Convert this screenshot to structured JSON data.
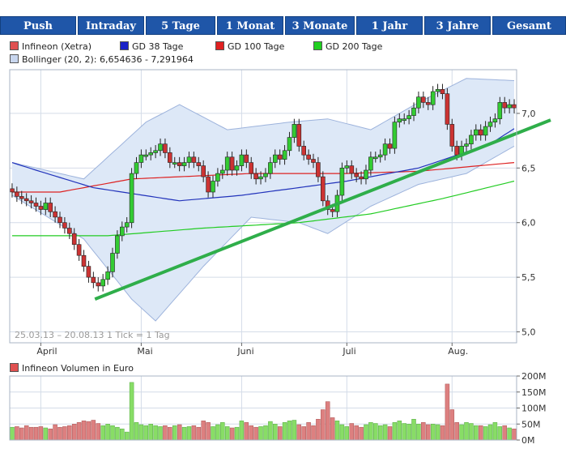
{
  "tabs": [
    "Push",
    "Intraday",
    "5 Tage",
    "1 Monat",
    "3 Monate",
    "1 Jahr",
    "3 Jahre",
    "Gesamt"
  ],
  "legend": {
    "price": "Infineon (Xetra)",
    "gd38": "GD 38 Tage",
    "gd100": "GD 100 Tage",
    "gd200": "GD 200 Tage",
    "bollinger": "Bollinger (20, 2): 6,654636 - 7,291964",
    "volume": "Infineon Volumen in Euro"
  },
  "colors": {
    "tab": "#1f56a8",
    "up": "#33cc33",
    "down": "#cc3333",
    "gd38": "#2233bb",
    "gd100": "#dd2222",
    "gd200": "#22cc22",
    "band": "#dde8f7",
    "trend": "#2fae4a"
  },
  "chart_data": [
    {
      "type": "candlestick",
      "title": "Infineon (Xetra)",
      "footnote": "25.03.13 – 20.08.13   1 Tick = 1 Tag",
      "x_tick_labels": [
        "April",
        "Mai",
        "Juni",
        "Juli",
        "Aug."
      ],
      "y_tick_labels": [
        "7,0",
        "6,5",
        "6,0",
        "5,5",
        "5,0"
      ],
      "yticks": [
        7.0,
        6.5,
        6.0,
        5.5,
        5.0
      ],
      "ylim": [
        4.9,
        7.4
      ],
      "n_days": 106,
      "close": [
        6.28,
        6.24,
        6.22,
        6.2,
        6.18,
        6.15,
        6.12,
        6.18,
        6.1,
        6.05,
        6.0,
        5.95,
        5.9,
        5.8,
        5.7,
        5.6,
        5.5,
        5.45,
        5.42,
        5.48,
        5.55,
        5.72,
        5.88,
        5.96,
        6.0,
        6.45,
        6.55,
        6.62,
        6.62,
        6.64,
        6.66,
        6.72,
        6.64,
        6.55,
        6.55,
        6.52,
        6.55,
        6.6,
        6.55,
        6.52,
        6.42,
        6.28,
        6.38,
        6.45,
        6.48,
        6.6,
        6.48,
        6.52,
        6.62,
        6.55,
        6.45,
        6.4,
        6.42,
        6.45,
        6.55,
        6.62,
        6.58,
        6.66,
        6.78,
        6.9,
        6.7,
        6.62,
        6.58,
        6.55,
        6.42,
        6.2,
        6.12,
        6.1,
        6.25,
        6.5,
        6.52,
        6.45,
        6.42,
        6.4,
        6.48,
        6.6,
        6.6,
        6.62,
        6.72,
        6.68,
        6.92,
        6.95,
        6.95,
        6.98,
        7.05,
        7.15,
        7.1,
        7.08,
        7.2,
        7.22,
        7.18,
        6.9,
        6.7,
        6.62,
        6.7,
        6.72,
        6.8,
        6.85,
        6.8,
        6.88,
        6.92,
        6.95,
        7.1,
        7.05,
        7.08,
        7.05
      ],
      "series": [
        {
          "name": "GD 38 Tage",
          "key_values": [
            [
              0,
              6.55
            ],
            [
              5,
              6.48
            ],
            [
              17,
              6.32
            ],
            [
              35,
              6.2
            ],
            [
              48,
              6.25
            ],
            [
              70,
              6.38
            ],
            [
              85,
              6.5
            ],
            [
              100,
              6.72
            ],
            [
              105,
              6.86
            ]
          ]
        },
        {
          "name": "GD 100 Tage",
          "key_values": [
            [
              0,
              6.28
            ],
            [
              10,
              6.28
            ],
            [
              25,
              6.4
            ],
            [
              50,
              6.45
            ],
            [
              70,
              6.45
            ],
            [
              85,
              6.47
            ],
            [
              105,
              6.55
            ]
          ]
        },
        {
          "name": "GD 200 Tage",
          "key_values": [
            [
              0,
              5.88
            ],
            [
              20,
              5.88
            ],
            [
              40,
              5.95
            ],
            [
              60,
              6.0
            ],
            [
              75,
              6.08
            ],
            [
              90,
              6.22
            ],
            [
              105,
              6.38
            ]
          ]
        },
        {
          "name": "Bollinger upper",
          "key_values": [
            [
              0,
              6.55
            ],
            [
              15,
              6.4
            ],
            [
              28,
              6.92
            ],
            [
              35,
              7.08
            ],
            [
              45,
              6.85
            ],
            [
              58,
              6.92
            ],
            [
              66,
              6.95
            ],
            [
              75,
              6.85
            ],
            [
              85,
              7.1
            ],
            [
              95,
              7.32
            ],
            [
              105,
              7.3
            ]
          ]
        },
        {
          "name": "Bollinger lower",
          "key_values": [
            [
              0,
              6.25
            ],
            [
              15,
              5.85
            ],
            [
              25,
              5.3
            ],
            [
              30,
              5.1
            ],
            [
              40,
              5.6
            ],
            [
              50,
              6.05
            ],
            [
              60,
              6.0
            ],
            [
              66,
              5.9
            ],
            [
              75,
              6.15
            ],
            [
              85,
              6.35
            ],
            [
              95,
              6.45
            ],
            [
              105,
              6.7
            ]
          ]
        },
        {
          "name": "Trendlinie",
          "key_values": [
            [
              18,
              5.3
            ],
            [
              105,
              6.85
            ]
          ]
        }
      ]
    },
    {
      "type": "bar",
      "title": "Infineon Volumen in Euro",
      "y_tick_labels": [
        "200M",
        "150M",
        "100M",
        "50M",
        "0M"
      ],
      "yticks": [
        200,
        150,
        100,
        50,
        0
      ],
      "ylim": [
        0,
        200
      ],
      "values_millions": [
        40,
        42,
        38,
        45,
        40,
        40,
        42,
        38,
        35,
        48,
        40,
        42,
        45,
        50,
        55,
        60,
        58,
        62,
        52,
        45,
        50,
        45,
        40,
        35,
        25,
        180,
        55,
        48,
        45,
        50,
        45,
        42,
        45,
        40,
        45,
        48,
        40,
        42,
        45,
        40,
        60,
        55,
        42,
        48,
        55,
        42,
        38,
        40,
        60,
        55,
        45,
        40,
        42,
        45,
        58,
        50,
        42,
        55,
        60,
        62,
        48,
        42,
        55,
        45,
        65,
        95,
        120,
        70,
        60,
        48,
        42,
        52,
        45,
        40,
        48,
        55,
        52,
        45,
        48,
        42,
        55,
        60,
        52,
        50,
        65,
        50,
        55,
        48,
        50,
        48,
        45,
        175,
        95,
        55,
        48,
        55,
        52,
        45,
        45,
        42,
        48,
        55,
        42,
        45,
        38,
        35
      ]
    }
  ]
}
